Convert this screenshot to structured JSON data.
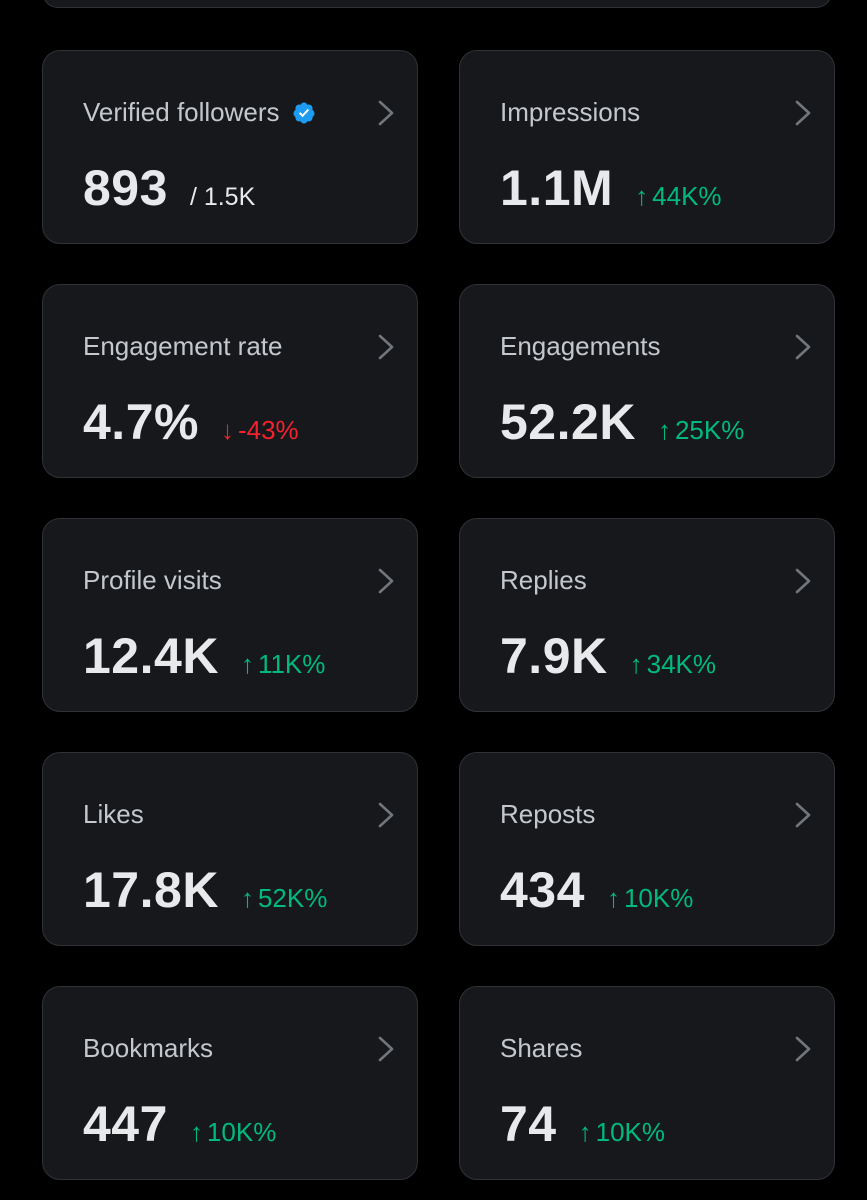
{
  "colors": {
    "background": "#000000",
    "card": "#16181c",
    "border": "#2f3336",
    "positive": "#00ba7c",
    "negative": "#f4212e",
    "verified": "#1d9bf0"
  },
  "metrics": [
    {
      "label": "Verified followers",
      "value": "893",
      "sub": "/ 1.5K",
      "icon": "verified-badge-icon"
    },
    {
      "label": "Impressions",
      "value": "1.1M",
      "change": "44K%",
      "direction": "up",
      "arrow": "↑"
    },
    {
      "label": "Engagement rate",
      "value": "4.7%",
      "change": "-43%",
      "direction": "down",
      "arrow": "↓"
    },
    {
      "label": "Engagements",
      "value": "52.2K",
      "change": "25K%",
      "direction": "up",
      "arrow": "↑"
    },
    {
      "label": "Profile visits",
      "value": "12.4K",
      "change": "11K%",
      "direction": "up",
      "arrow": "↑"
    },
    {
      "label": "Replies",
      "value": "7.9K",
      "change": "34K%",
      "direction": "up",
      "arrow": "↑"
    },
    {
      "label": "Likes",
      "value": "17.8K",
      "change": "52K%",
      "direction": "up",
      "arrow": "↑"
    },
    {
      "label": "Reposts",
      "value": "434",
      "change": "10K%",
      "direction": "up",
      "arrow": "↑"
    },
    {
      "label": "Bookmarks",
      "value": "447",
      "change": "10K%",
      "direction": "up",
      "arrow": "↑"
    },
    {
      "label": "Shares",
      "value": "74",
      "change": "10K%",
      "direction": "up",
      "arrow": "↑"
    }
  ]
}
